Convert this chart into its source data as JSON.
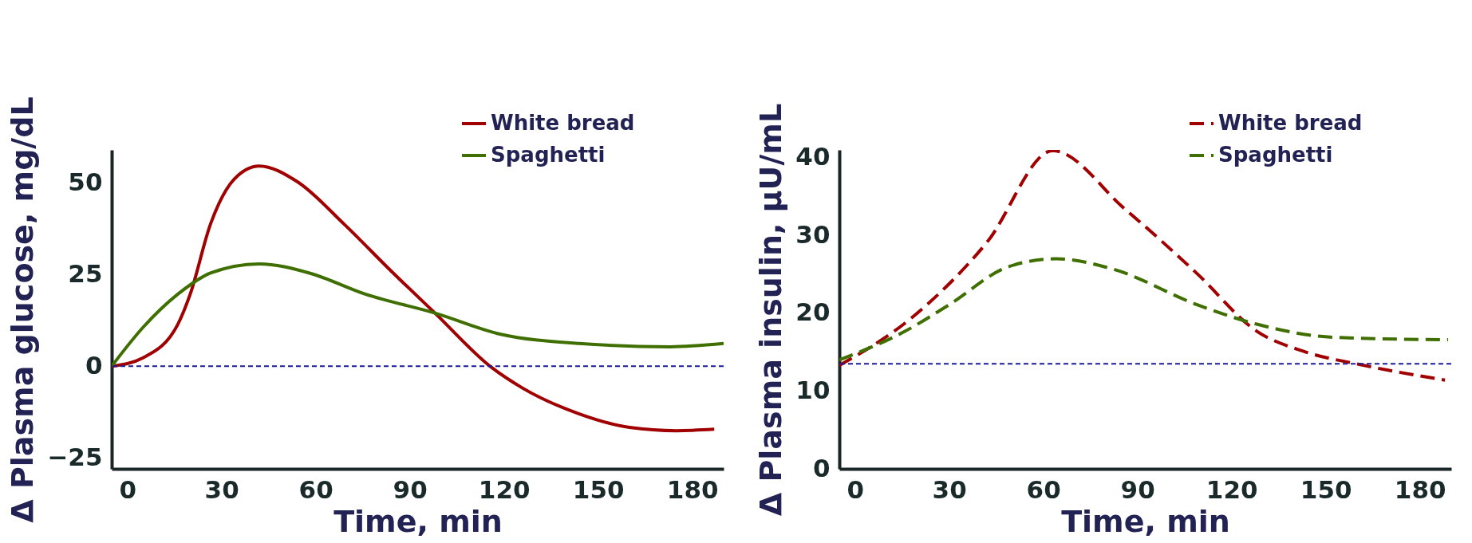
{
  "chart_data": [
    {
      "type": "line",
      "xlabel": "Time, min",
      "ylabel": "Δ Plasma glucose, mg/dL",
      "xlim": [
        -5,
        190
      ],
      "xticks": [
        0,
        30,
        60,
        90,
        120,
        150,
        180
      ],
      "ylim": [
        -28,
        59
      ],
      "yticks": [
        -25,
        0,
        25,
        50
      ],
      "legend": "top right",
      "line_style": "solid",
      "series": [
        {
          "name": "White bread",
          "color": "#a00000",
          "x": [
            -5,
            5,
            16,
            20,
            26.5,
            34,
            42,
            54,
            69,
            84,
            98,
            116,
            126,
            144,
            160,
            175,
            187
          ],
          "values": [
            0,
            2.3,
            11.3,
            19.6,
            38.8,
            51,
            54.6,
            50.4,
            38.8,
            26,
            14.5,
            -0.3,
            -6,
            -13,
            -16.7,
            -17.6,
            -17.2
          ]
        },
        {
          "name": "Spaghetti",
          "color": "#3f6f00",
          "x": [
            -5,
            5,
            16,
            26.5,
            42,
            58,
            76,
            98,
            119,
            144,
            173,
            190
          ],
          "values": [
            0,
            10.6,
            19.6,
            25.4,
            27.9,
            25.4,
            19.6,
            14.5,
            8.7,
            6.2,
            5.3,
            6.2
          ]
        }
      ],
      "ref_lines": [
        {
          "axis": "y",
          "value": 0,
          "color": "#1a1aa0",
          "line_style": "dashed"
        }
      ]
    },
    {
      "type": "line",
      "xlabel": "Time, min",
      "ylabel": "Δ Plasma insulin, µU/mL",
      "xlim": [
        -5,
        190
      ],
      "xticks": [
        0,
        30,
        60,
        90,
        120,
        150,
        180
      ],
      "ylim": [
        0,
        41
      ],
      "yticks": [
        0,
        10,
        20,
        30,
        40
      ],
      "legend": "top right",
      "line_style": "dashed",
      "series": [
        {
          "name": "White bread",
          "color": "#a00000",
          "x": [
            -5,
            18,
            42,
            63,
            86,
            109,
            128,
            143,
            161,
            188
          ],
          "values": [
            13.3,
            19.4,
            29.1,
            40.9,
            33.4,
            25.1,
            17.7,
            15.1,
            13.4,
            11.4
          ]
        },
        {
          "name": "Spaghetti",
          "color": "#3f6f00",
          "x": [
            -5,
            16,
            30,
            49,
            64,
            82,
            109,
            128,
            153,
            189
          ],
          "values": [
            14,
            17.7,
            21.1,
            26,
            27,
            25.7,
            21.1,
            18.6,
            16.9,
            16.6
          ]
        }
      ],
      "ref_lines": [
        {
          "axis": "y",
          "value": 13.5,
          "color": "#1a1aa0",
          "line_style": "dashed"
        }
      ]
    }
  ]
}
